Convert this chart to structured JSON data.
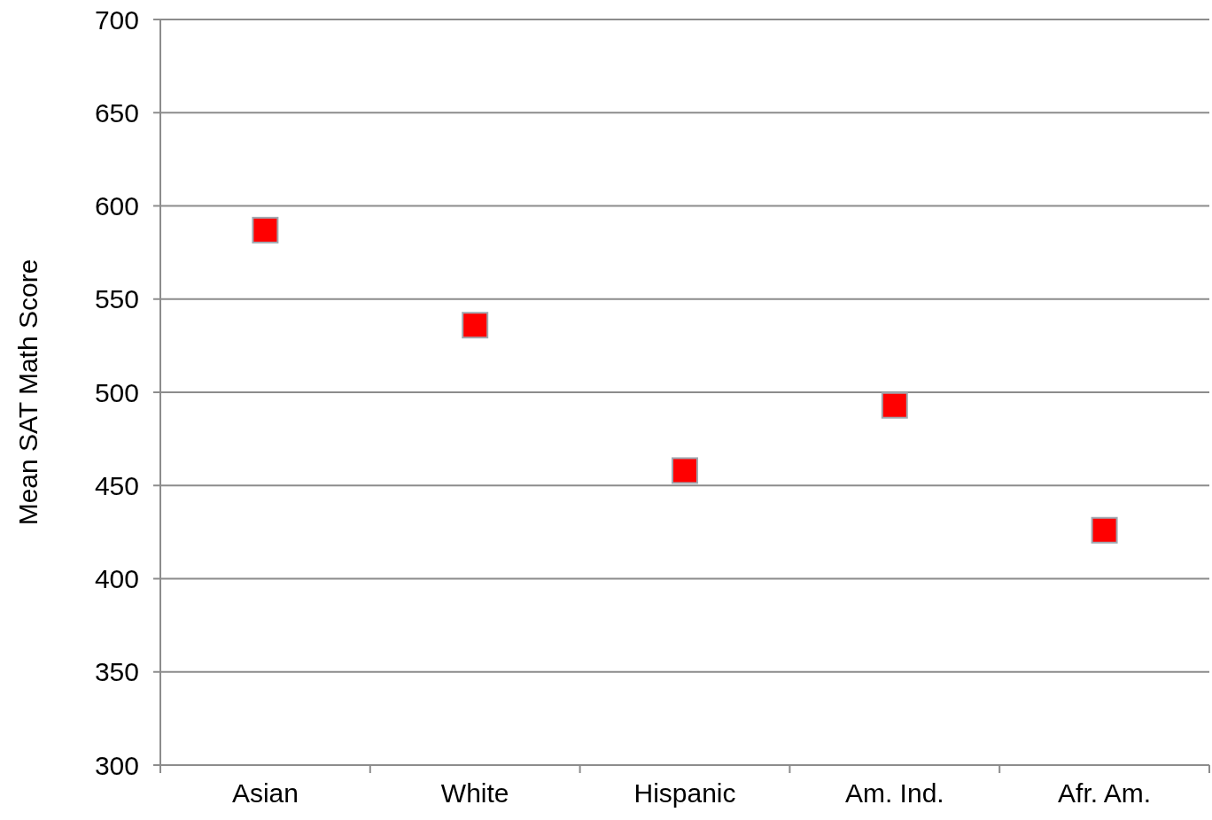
{
  "chart_data": {
    "type": "scatter",
    "ylabel": "Mean SAT Math Score",
    "categories": [
      "Asian",
      "White",
      "Hispanic",
      "Am. Ind.",
      "Afr. Am."
    ],
    "series": [
      {
        "color": "#ff0000",
        "values": [
          587,
          536,
          458,
          493,
          426
        ]
      }
    ],
    "ylim": [
      300,
      700
    ],
    "yticks": [
      300,
      350,
      400,
      450,
      500,
      550,
      600,
      650,
      700
    ],
    "grid": "y",
    "marker": "square"
  }
}
